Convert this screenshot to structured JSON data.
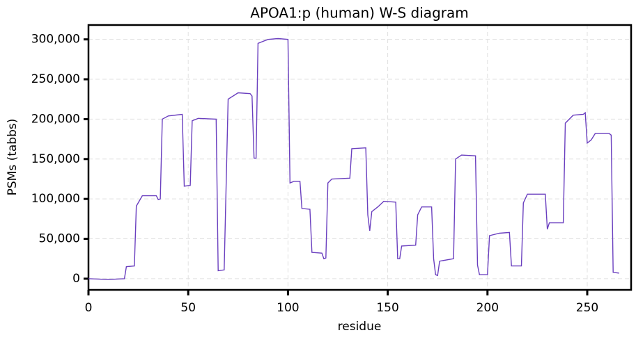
{
  "chart_data": {
    "type": "line",
    "title": "APOA1:p (human) W-S diagram",
    "x_label": "residue",
    "y_label": "PSMs (tabbs)",
    "series": [
      {
        "name": "APOA1",
        "color": "#6a3fbf",
        "x": [
          0,
          10,
          18,
          19,
          23,
          24,
          27,
          34,
          35,
          36,
          37,
          40,
          47,
          48,
          51,
          52,
          55,
          64,
          65,
          68,
          70,
          75,
          81,
          82,
          83,
          84,
          85,
          90,
          95,
          100,
          101,
          103,
          106,
          107,
          111,
          112,
          117,
          118,
          119,
          120,
          122,
          131,
          132,
          139,
          140,
          141,
          142,
          145,
          148,
          154,
          155,
          156,
          157,
          164,
          165,
          167,
          172,
          173,
          174,
          175,
          176,
          183,
          184,
          187,
          194,
          195,
          196,
          200,
          201,
          206,
          211,
          212,
          217,
          218,
          220,
          229,
          230,
          231,
          238,
          239,
          243,
          248,
          249,
          250,
          252,
          254,
          261,
          262,
          263,
          266
        ],
        "values": [
          0,
          -1000,
          0,
          15000,
          16000,
          91000,
          104000,
          104000,
          99000,
          100000,
          200000,
          204000,
          206000,
          116000,
          117000,
          198000,
          201000,
          200000,
          10000,
          11000,
          225000,
          233000,
          232000,
          229000,
          151000,
          151000,
          295000,
          300000,
          301000,
          300000,
          120000,
          122000,
          122000,
          88000,
          87000,
          33000,
          32000,
          25000,
          26000,
          120000,
          125000,
          126000,
          163000,
          164000,
          80000,
          60000,
          84000,
          90000,
          97000,
          96000,
          25000,
          25000,
          41000,
          42000,
          80000,
          90000,
          90000,
          25000,
          5000,
          4000,
          22000,
          25000,
          150000,
          155000,
          154000,
          17000,
          5000,
          5000,
          54000,
          57000,
          58000,
          16000,
          16000,
          95000,
          106000,
          106000,
          62000,
          70000,
          70000,
          195000,
          205000,
          206000,
          208000,
          170000,
          174000,
          182000,
          182000,
          180000,
          8000,
          7000
        ]
      }
    ],
    "xlim": [
      0,
      272
    ],
    "xticks": [
      0,
      50,
      100,
      150,
      200,
      250
    ],
    "ylim": [
      -14000,
      318000
    ],
    "yticks": [
      {
        "value": 0,
        "label": "0"
      },
      {
        "value": 50000,
        "label": "50,000"
      },
      {
        "value": 100000,
        "label": "100,000"
      },
      {
        "value": 150000,
        "label": "150,000"
      },
      {
        "value": 200000,
        "label": "200,000"
      },
      {
        "value": 250000,
        "label": "250,000"
      },
      {
        "value": 300000,
        "label": "300,000"
      }
    ],
    "grid": true
  }
}
